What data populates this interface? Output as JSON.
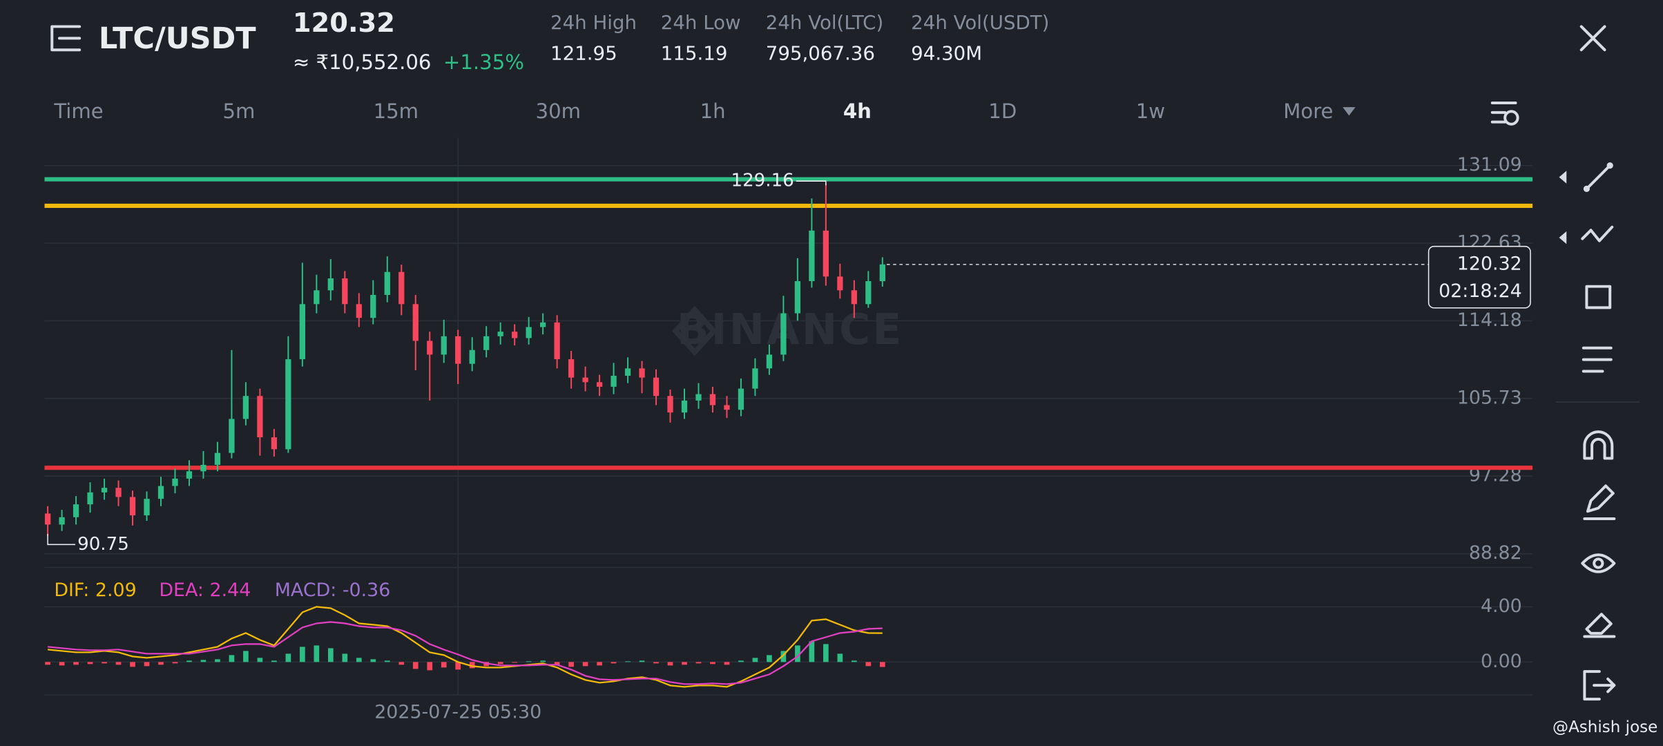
{
  "header": {
    "pair": "LTC/USDT",
    "price": 120.32,
    "fiat_price": "≈ ₹10,552.06",
    "change": "+1.35%",
    "stats": [
      {
        "label": "24h High",
        "value": 121.95
      },
      {
        "label": "24h Low",
        "value": 115.19
      },
      {
        "label": "24h Vol(LTC)",
        "value": "795,067.36"
      },
      {
        "label": "24h Vol(USDT)",
        "value": "94.30M"
      }
    ]
  },
  "tabs": [
    "Time",
    "5m",
    "15m",
    "30m",
    "1h",
    "4h",
    "1D",
    "1w",
    "More"
  ],
  "watermark": "BINANCE",
  "credit": "@Ashish jose",
  "chart_data": [
    {
      "type": "candlestick",
      "categories": [
        null,
        null,
        null,
        null,
        null,
        null,
        null,
        null,
        null,
        null,
        null,
        null,
        null,
        null,
        null,
        null,
        null,
        null,
        null,
        null,
        null,
        null,
        null,
        null,
        null,
        null,
        null,
        null,
        null,
        "2025-07-25 05:30",
        null,
        null,
        null,
        null,
        null,
        null,
        null,
        null,
        null,
        null,
        null,
        null,
        null,
        null,
        null,
        null,
        null,
        null,
        null,
        null,
        null,
        null,
        null,
        null,
        null,
        null,
        null,
        null,
        null,
        null
      ],
      "open": [
        93.2,
        92.0,
        92.8,
        94.2,
        95.5,
        96.0,
        95.0,
        93.0,
        94.8,
        96.2,
        97.0,
        97.8,
        98.5,
        99.8,
        103.5,
        106.0,
        101.5,
        100.2,
        110.0,
        116.0,
        117.5,
        118.8,
        116.0,
        114.5,
        117.0,
        119.5,
        116.0,
        112.0,
        110.5,
        112.5,
        109.5,
        111.0,
        112.5,
        113.0,
        112.3,
        113.5,
        114.0,
        110.0,
        108.0,
        107.5,
        107.0,
        108.2,
        109.0,
        108.0,
        106.0,
        104.2,
        105.5,
        106.2,
        105.0,
        104.5,
        106.8,
        109.0,
        110.5,
        115.0,
        118.5,
        124.0,
        119.0,
        117.5,
        116.0,
        118.5
      ],
      "high": [
        94.0,
        93.6,
        95.1,
        96.6,
        97.0,
        96.8,
        95.7,
        95.6,
        97.2,
        98.1,
        99.0,
        100.0,
        101.0,
        111.0,
        107.5,
        106.8,
        102.4,
        112.5,
        120.5,
        119.2,
        120.9,
        119.6,
        117.2,
        118.6,
        121.2,
        120.3,
        117.0,
        113.0,
        114.3,
        113.2,
        112.4,
        113.6,
        114.0,
        113.8,
        114.6,
        115.0,
        114.8,
        110.9,
        109.2,
        108.3,
        109.6,
        110.2,
        109.8,
        108.9,
        106.7,
        106.8,
        107.4,
        107.0,
        106.0,
        107.9,
        110.1,
        111.6,
        116.9,
        121.0,
        127.5,
        129.16,
        120.4,
        118.6,
        119.6,
        121.1
      ],
      "low": [
        90.75,
        91.3,
        92.0,
        93.3,
        94.7,
        94.0,
        91.9,
        92.4,
        94.0,
        95.4,
        96.2,
        97.0,
        97.8,
        99.2,
        102.8,
        99.5,
        99.4,
        99.8,
        109.2,
        115.0,
        116.4,
        115.0,
        113.5,
        113.8,
        116.2,
        114.8,
        108.8,
        105.5,
        109.6,
        107.3,
        108.7,
        110.2,
        111.6,
        111.5,
        111.6,
        112.7,
        109.0,
        106.8,
        106.5,
        106.0,
        106.2,
        107.4,
        106.3,
        105.0,
        103.1,
        103.5,
        104.6,
        104.2,
        103.6,
        103.8,
        106.0,
        108.3,
        109.8,
        114.2,
        117.8,
        118.0,
        116.6,
        114.5,
        115.6,
        117.9
      ],
      "close": [
        92.0,
        92.8,
        94.2,
        95.5,
        96.0,
        95.0,
        93.0,
        94.8,
        96.2,
        97.0,
        97.8,
        98.5,
        99.8,
        103.5,
        106.0,
        101.5,
        100.2,
        110.0,
        116.0,
        117.5,
        118.8,
        116.0,
        114.5,
        117.0,
        119.5,
        116.0,
        112.0,
        110.5,
        112.5,
        109.5,
        111.0,
        112.5,
        113.0,
        112.3,
        113.5,
        114.0,
        110.0,
        108.0,
        107.5,
        107.0,
        108.2,
        109.0,
        108.0,
        106.0,
        104.2,
        105.5,
        106.2,
        105.0,
        104.5,
        106.8,
        109.0,
        110.5,
        115.0,
        118.5,
        124.0,
        119.0,
        117.5,
        116.0,
        118.5,
        120.32
      ],
      "up_color": "#2ebd85",
      "down_color": "#f6465d",
      "ylim": [
        87.32,
        134.09
      ],
      "yticks": [
        88.82,
        97.28,
        105.73,
        114.18,
        122.63,
        131.09
      ],
      "grid": true,
      "lines": [
        {
          "value": 129.59,
          "color": "#2ebd85"
        },
        {
          "value": 126.7,
          "color": "#f0b90b"
        },
        {
          "value": 98.18,
          "color": "#e8323c"
        }
      ],
      "annotations": [
        129.16,
        90.75
      ],
      "last_price": 120.32,
      "countdown": "02:18:24"
    },
    {
      "type": "macd",
      "legend": [
        "DIF: 2.09",
        "DEA: 2.44",
        "MACD: -0.36"
      ],
      "up_color": "#2ebd85",
      "down_color": "#f6465d",
      "series": [
        {
          "color": "#f0b90b",
          "values": [
            0.9,
            0.8,
            0.7,
            0.7,
            0.8,
            0.7,
            0.4,
            0.3,
            0.4,
            0.5,
            0.7,
            0.9,
            1.1,
            1.7,
            2.1,
            1.6,
            1.2,
            2.4,
            3.6,
            4.0,
            3.9,
            3.4,
            2.8,
            2.7,
            2.6,
            2.1,
            1.4,
            0.7,
            0.5,
            0.0,
            -0.3,
            -0.4,
            -0.4,
            -0.3,
            -0.2,
            -0.1,
            -0.4,
            -0.9,
            -1.3,
            -1.5,
            -1.4,
            -1.2,
            -1.1,
            -1.3,
            -1.7,
            -1.8,
            -1.7,
            -1.7,
            -1.8,
            -1.4,
            -0.9,
            -0.4,
            0.5,
            1.6,
            3.0,
            3.1,
            2.7,
            2.3,
            2.1,
            2.09
          ]
        },
        {
          "color": "#e040c0",
          "values": [
            1.1,
            1.0,
            0.9,
            0.85,
            0.85,
            0.9,
            0.75,
            0.6,
            0.6,
            0.6,
            0.6,
            0.75,
            0.9,
            1.2,
            1.3,
            1.3,
            1.1,
            1.8,
            2.5,
            2.8,
            2.9,
            2.8,
            2.6,
            2.5,
            2.5,
            2.3,
            1.9,
            1.3,
            0.9,
            0.55,
            0.15,
            -0.1,
            -0.25,
            -0.25,
            -0.25,
            -0.2,
            -0.2,
            -0.55,
            -1.0,
            -1.25,
            -1.3,
            -1.25,
            -1.2,
            -1.2,
            -1.45,
            -1.6,
            -1.6,
            -1.55,
            -1.6,
            -1.5,
            -1.2,
            -0.9,
            -0.3,
            0.4,
            1.5,
            1.8,
            2.1,
            2.2,
            2.4,
            2.44
          ]
        },
        {
          "color": "#9b72cf",
          "values": [
            -0.2,
            -0.25,
            -0.2,
            -0.15,
            -0.1,
            -0.2,
            -0.35,
            -0.3,
            -0.2,
            -0.1,
            0.1,
            0.15,
            0.2,
            0.5,
            0.8,
            0.3,
            0.1,
            0.6,
            1.1,
            1.2,
            1.0,
            0.6,
            0.3,
            0.2,
            0.1,
            -0.2,
            -0.5,
            -0.6,
            -0.4,
            -0.55,
            -0.45,
            -0.3,
            -0.15,
            -0.05,
            0.05,
            0.1,
            -0.2,
            -0.35,
            -0.3,
            -0.25,
            -0.1,
            0.05,
            0.1,
            -0.1,
            -0.25,
            -0.2,
            -0.1,
            -0.15,
            -0.2,
            0.1,
            0.3,
            0.5,
            0.8,
            1.2,
            1.5,
            1.3,
            0.6,
            0.1,
            -0.3,
            -0.36
          ]
        }
      ],
      "ylim": [
        -2.38,
        6.46
      ],
      "yticks": [
        {
          "value": 0,
          "label": "0.00"
        },
        {
          "value": 4,
          "label": "4.00"
        }
      ]
    }
  ]
}
